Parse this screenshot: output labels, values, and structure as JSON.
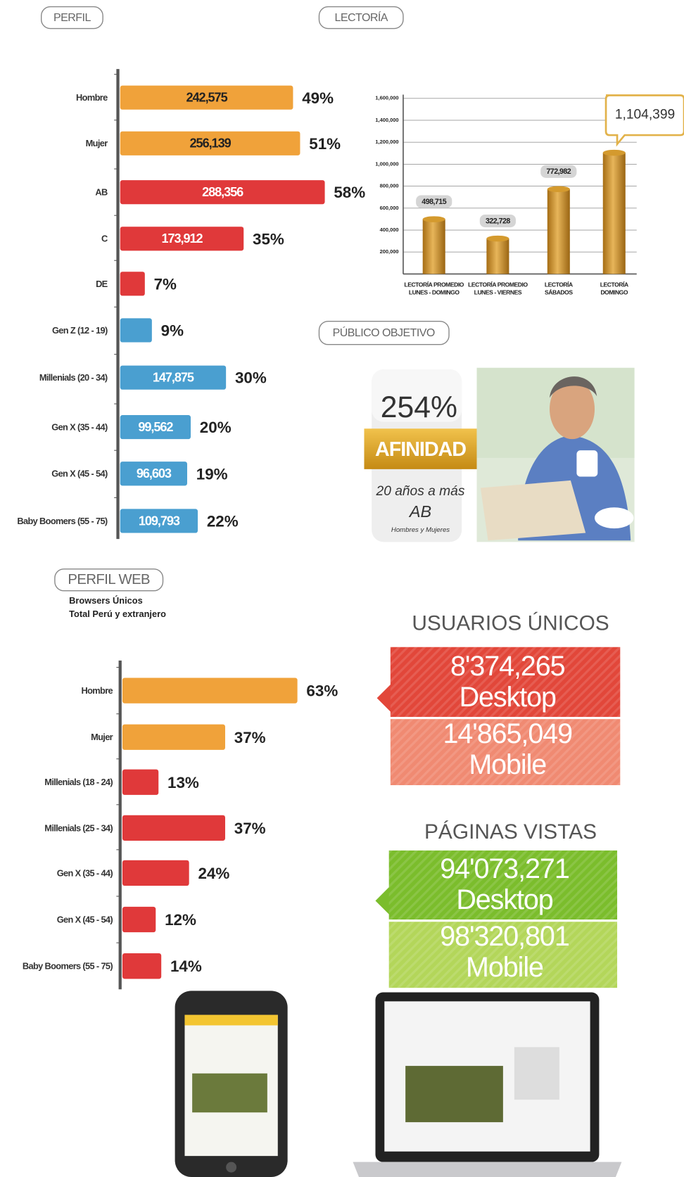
{
  "labels": {
    "perfil": "PERFIL",
    "lectoria": "LECTORÍA",
    "publico": "PÚBLICO OBJETIVO",
    "perfil_web": "PERFIL WEB"
  },
  "publico_objetivo": {
    "afinidad_value": "254%",
    "afinidad": "AFINIDAD",
    "edad": "20 años a más",
    "nse": "AB",
    "genero": "Hombres y Mujeres"
  },
  "perfil_web_note": [
    "Browsers Únicos",
    "Total Perú y extranjero"
  ],
  "usuarios_unicos": {
    "title": "USUARIOS ÚNICOS",
    "desktop_value": "8'374,265",
    "desktop": "Desktop",
    "mobile_value": "14'865,049",
    "mobile": "Mobile"
  },
  "paginas_vistas": {
    "title": "PÁGINAS VISTAS",
    "desktop_value": "94'073,271",
    "desktop": "Desktop",
    "mobile_value": "98'320,801",
    "mobile": "Mobile"
  },
  "chart_data": [
    {
      "type": "hbar",
      "categories": [
        "Hombre",
        "Mujer",
        "AB",
        "C",
        "DE",
        "Gen Z (12 - 19)",
        "Millenials (20 - 34)",
        "Gen X (35 - 44)",
        "Gen X (45 - 54)",
        "Baby Boomers (55 - 75)"
      ],
      "values": [
        49,
        51,
        58,
        35,
        7,
        9,
        30,
        20,
        19,
        22
      ],
      "value_labels": [
        "49%",
        "51%",
        "58%",
        "35%",
        "7%",
        "9%",
        "30%",
        "20%",
        "19%",
        "22%"
      ],
      "counts": [
        "242,575",
        "256,139",
        "288,356",
        "173,912",
        null,
        null,
        "147,875",
        "99,562",
        "96,603",
        "109,793"
      ],
      "colors": [
        "#f0a23a",
        "#f0a23a",
        "#e0393a",
        "#e0393a",
        "#e0393a",
        "#4a9fd0",
        "#4a9fd0",
        "#4a9fd0",
        "#4a9fd0",
        "#4a9fd0"
      ]
    },
    {
      "type": "bar",
      "categories": [
        [
          "LECTORÍA PROMEDIO",
          "LUNES - DOMINGO"
        ],
        [
          "LECTORÍA PROMEDIO",
          "LUNES - VIERNES"
        ],
        [
          "LECTORÍA",
          "SÁBADOS"
        ],
        [
          "LECTORÍA",
          "DOMINGO"
        ]
      ],
      "values": [
        498715,
        322728,
        772982,
        1104399
      ],
      "value_labels": [
        "498,715",
        "322,728",
        "772,982",
        "1,104,399"
      ],
      "color": "#d49a2e",
      "ylim": [
        0,
        1600000
      ],
      "yticks": [
        {
          "value": 200000,
          "label": "200,000"
        },
        {
          "value": 400000,
          "label": "400,000"
        },
        {
          "value": 600000,
          "label": "600,000"
        },
        {
          "value": 800000,
          "label": "800,000"
        },
        {
          "value": 1000000,
          "label": "1,000,000"
        },
        {
          "value": 1200000,
          "label": "1,200,000"
        },
        {
          "value": 1400000,
          "label": "1,400,000"
        },
        {
          "value": 1600000,
          "label": "1,600,000"
        }
      ],
      "grid": true
    },
    {
      "type": "hbar",
      "categories": [
        "Hombre",
        "Mujer",
        "Millenials (18 - 24)",
        "Millenials (25 - 34)",
        "Gen X (35 - 44)",
        "Gen X (45 - 54)",
        "Baby Boomers (55 - 75)"
      ],
      "values": [
        63,
        37,
        13,
        37,
        24,
        12,
        14
      ],
      "value_labels": [
        "63%",
        "37%",
        "13%",
        "37%",
        "24%",
        "12%",
        "14%"
      ],
      "colors": [
        "#f0a23a",
        "#f0a23a",
        "#e0393a",
        "#e0393a",
        "#e0393a",
        "#e0393a",
        "#e0393a"
      ]
    }
  ]
}
